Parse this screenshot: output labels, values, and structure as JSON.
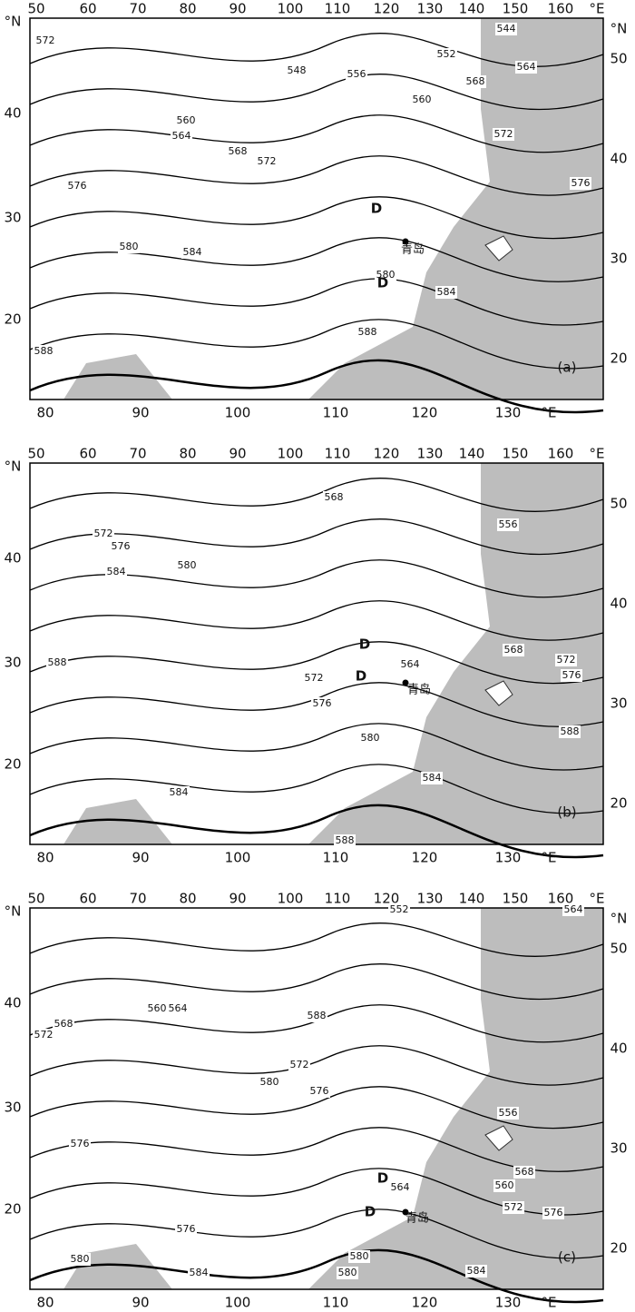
{
  "panels": [
    {
      "top_labels": [
        "50",
        "60",
        "70",
        "80",
        "90",
        "100",
        "110",
        "120",
        "130",
        "140",
        "150",
        "160",
        "°E"
      ],
      "left_labels": [
        "°N",
        "40",
        "30",
        "20"
      ],
      "right_labels": [
        "°N",
        "50",
        "40",
        "30",
        "20"
      ],
      "bottom_labels": [
        "80",
        "90",
        "100",
        "110",
        "120",
        "130",
        "°E"
      ],
      "contour_labels": [
        "572",
        "544",
        "552",
        "560",
        "564",
        "548",
        "556",
        "568",
        "560",
        "564",
        "568",
        "572",
        "576",
        "572",
        "576",
        "580",
        "584",
        "580",
        "584",
        "588",
        "588"
      ],
      "lows": [
        "D",
        "D"
      ],
      "station": "青岛",
      "panel_label": "(a)"
    },
    {
      "top_labels": [
        "50",
        "60",
        "70",
        "80",
        "90",
        "100",
        "110",
        "120",
        "130",
        "140",
        "150",
        "160",
        "°E"
      ],
      "left_labels": [
        "°N",
        "40",
        "30",
        "20"
      ],
      "right_labels": [
        "50",
        "40",
        "30",
        "20"
      ],
      "bottom_labels": [
        "80",
        "90",
        "100",
        "110",
        "120",
        "130",
        "°E"
      ],
      "contour_labels": [
        "568",
        "556",
        "572",
        "576",
        "584",
        "580",
        "588",
        "564",
        "568",
        "572",
        "576",
        "572",
        "576",
        "580",
        "584",
        "588",
        "584",
        "588"
      ],
      "lows": [
        "D",
        "D"
      ],
      "station": "青岛",
      "panel_label": "(b)"
    },
    {
      "top_labels": [
        "50",
        "60",
        "70",
        "80",
        "90",
        "100",
        "110",
        "120",
        "130",
        "140",
        "150",
        "160",
        "°E"
      ],
      "left_labels": [
        "°N",
        "40",
        "30",
        "20"
      ],
      "right_labels": [
        "°N",
        "50",
        "40",
        "30",
        "20"
      ],
      "bottom_labels": [
        "80",
        "90",
        "100",
        "110",
        "120",
        "130",
        "°E"
      ],
      "contour_labels": [
        "552",
        "564",
        "560",
        "564",
        "568",
        "572",
        "588",
        "572",
        "556",
        "576",
        "580",
        "576",
        "564",
        "560",
        "568",
        "572",
        "576",
        "580",
        "576",
        "580",
        "580",
        "584",
        "584"
      ],
      "lows": [
        "D",
        "D"
      ],
      "station": "青岛",
      "panel_label": "(c)"
    }
  ]
}
